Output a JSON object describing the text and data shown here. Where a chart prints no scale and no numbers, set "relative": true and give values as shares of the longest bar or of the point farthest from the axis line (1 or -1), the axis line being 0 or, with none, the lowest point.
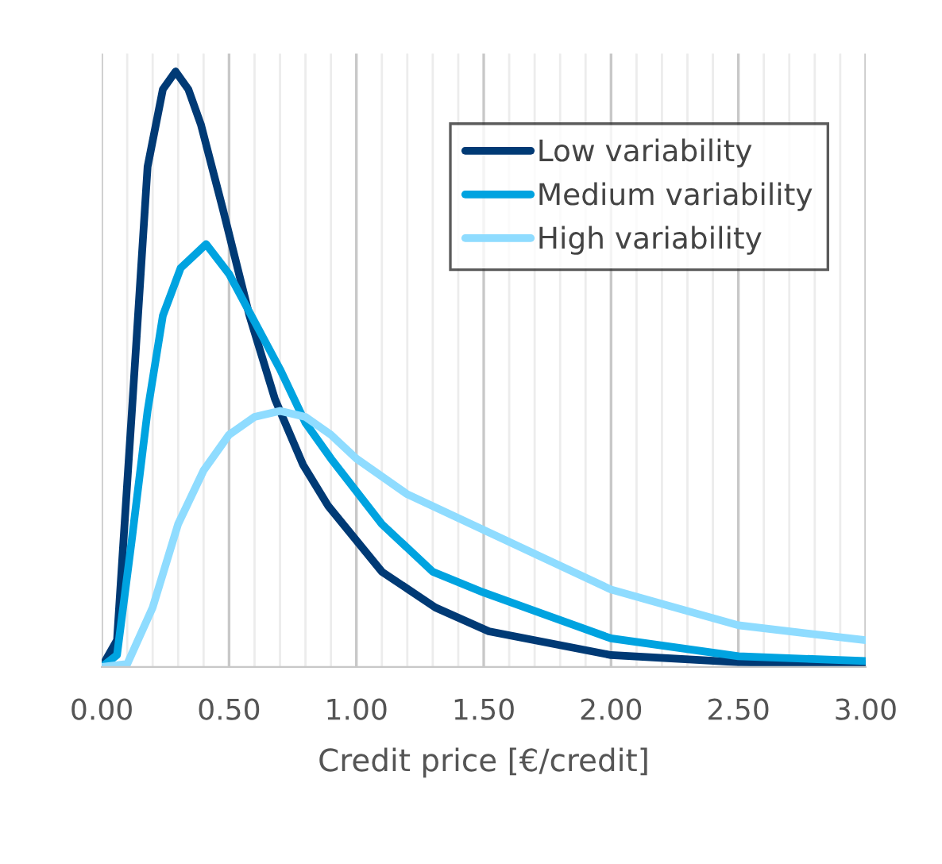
{
  "chart_data": {
    "type": "line",
    "relative": true,
    "xlabel": "Credit price [€/credit]",
    "xlim": [
      0,
      3
    ],
    "xticks": [
      {
        "value": 0,
        "label": "0.00"
      },
      {
        "value": 0.5,
        "label": "0.50"
      },
      {
        "value": 1,
        "label": "1.00"
      },
      {
        "value": 1.5,
        "label": "1.50"
      },
      {
        "value": 2,
        "label": "2.00"
      },
      {
        "value": 2.5,
        "label": "2.50"
      },
      {
        "value": 3,
        "label": "3.00"
      }
    ],
    "grid": "x",
    "legend": "top right",
    "marker": "none",
    "line_style": "solid",
    "tick_labels": "x",
    "series": [
      {
        "name": "Low variability",
        "color": "#003a75",
        "x": [
          0,
          0.06,
          0.12,
          0.18,
          0.24,
          0.29,
          0.34,
          0.39,
          0.475,
          0.58,
          0.68,
          0.79,
          0.89,
          1.1,
          1.31,
          1.52,
          2.0,
          2.5,
          3.0
        ],
        "values": [
          0,
          0.045,
          0.44,
          0.84,
          0.97,
          1.0,
          0.97,
          0.91,
          0.77,
          0.59,
          0.45,
          0.34,
          0.27,
          0.16,
          0.1,
          0.06,
          0.02,
          0.008,
          0.005
        ]
      },
      {
        "name": "Medium variability",
        "color": "#00a3e0",
        "x": [
          0,
          0.06,
          0.12,
          0.18,
          0.24,
          0.31,
          0.41,
          0.5,
          0.6,
          0.7,
          0.8,
          0.9,
          1.1,
          1.3,
          1.5,
          2.0,
          2.5,
          3.0
        ],
        "values": [
          0,
          0.02,
          0.22,
          0.43,
          0.59,
          0.67,
          0.71,
          0.66,
          0.58,
          0.5,
          0.41,
          0.35,
          0.24,
          0.16,
          0.125,
          0.048,
          0.018,
          0.01
        ]
      },
      {
        "name": "High variability",
        "color": "#8fdcff",
        "x": [
          0,
          0.1,
          0.2,
          0.3,
          0.4,
          0.5,
          0.6,
          0.7,
          0.8,
          0.9,
          1.0,
          1.2,
          1.5,
          1.75,
          2.0,
          2.5,
          3.0
        ],
        "values": [
          0,
          0.005,
          0.1,
          0.24,
          0.33,
          0.39,
          0.42,
          0.43,
          0.42,
          0.39,
          0.35,
          0.29,
          0.23,
          0.18,
          0.13,
          0.07,
          0.045
        ]
      }
    ]
  }
}
